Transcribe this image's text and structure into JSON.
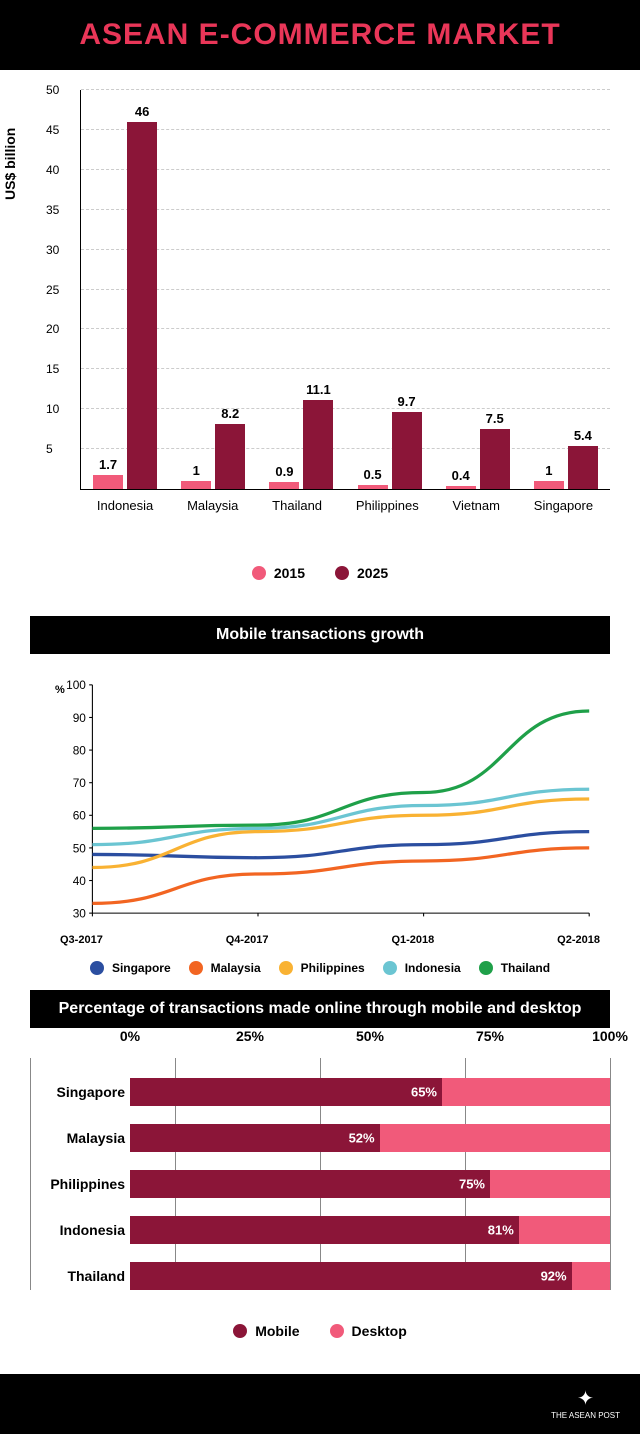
{
  "title": "ASEAN E-COMMERCE MARKET",
  "colors": {
    "accent": "#e93658",
    "dark_red": "#8b1538",
    "light_red": "#f15a7a",
    "black": "#000000",
    "white": "#ffffff"
  },
  "bar_chart": {
    "ylabel": "US$ billion",
    "ymax": 50,
    "ytick_step": 5,
    "categories": [
      "Indonesia",
      "Malaysia",
      "Thailand",
      "Philippines",
      "Vietnam",
      "Singapore"
    ],
    "series": [
      {
        "name": "2015",
        "color": "#f15a7a",
        "values": [
          1.7,
          1,
          0.9,
          0.5,
          0.4,
          1
        ]
      },
      {
        "name": "2025",
        "color": "#8b1538",
        "values": [
          46,
          8.2,
          11.1,
          9.7,
          7.5,
          5.4
        ]
      }
    ]
  },
  "line_chart": {
    "title": "Mobile transactions growth",
    "ylabel_symbol": "%",
    "ymin": 30,
    "ymax": 100,
    "ytick_step": 10,
    "x_categories": [
      "Q3-2017",
      "Q4-2017",
      "Q1-2018",
      "Q2-2018"
    ],
    "series": [
      {
        "name": "Singapore",
        "color": "#2b4ea0",
        "values": [
          48,
          47,
          51,
          55
        ]
      },
      {
        "name": "Malaysia",
        "color": "#f26522",
        "values": [
          33,
          42,
          46,
          50
        ]
      },
      {
        "name": "Philippines",
        "color": "#f9b233",
        "values": [
          44,
          55,
          60,
          65
        ]
      },
      {
        "name": "Indonesia",
        "color": "#6bc5d2",
        "values": [
          51,
          56,
          63,
          68
        ]
      },
      {
        "name": "Thailand",
        "color": "#1fa049",
        "values": [
          56,
          57,
          67,
          92
        ]
      }
    ]
  },
  "hbar_chart": {
    "title": "Percentage of transactions made online through mobile and desktop",
    "xticks": [
      0,
      25,
      50,
      75,
      100
    ],
    "series_names": [
      "Mobile",
      "Desktop"
    ],
    "series_colors": [
      "#8b1538",
      "#f15a7a"
    ],
    "rows": [
      {
        "label": "Singapore",
        "mobile": 65
      },
      {
        "label": "Malaysia",
        "mobile": 52
      },
      {
        "label": "Philippines",
        "mobile": 75
      },
      {
        "label": "Indonesia",
        "mobile": 81
      },
      {
        "label": "Thailand",
        "mobile": 92
      }
    ]
  },
  "footer_brand": "THE ASEAN POST"
}
